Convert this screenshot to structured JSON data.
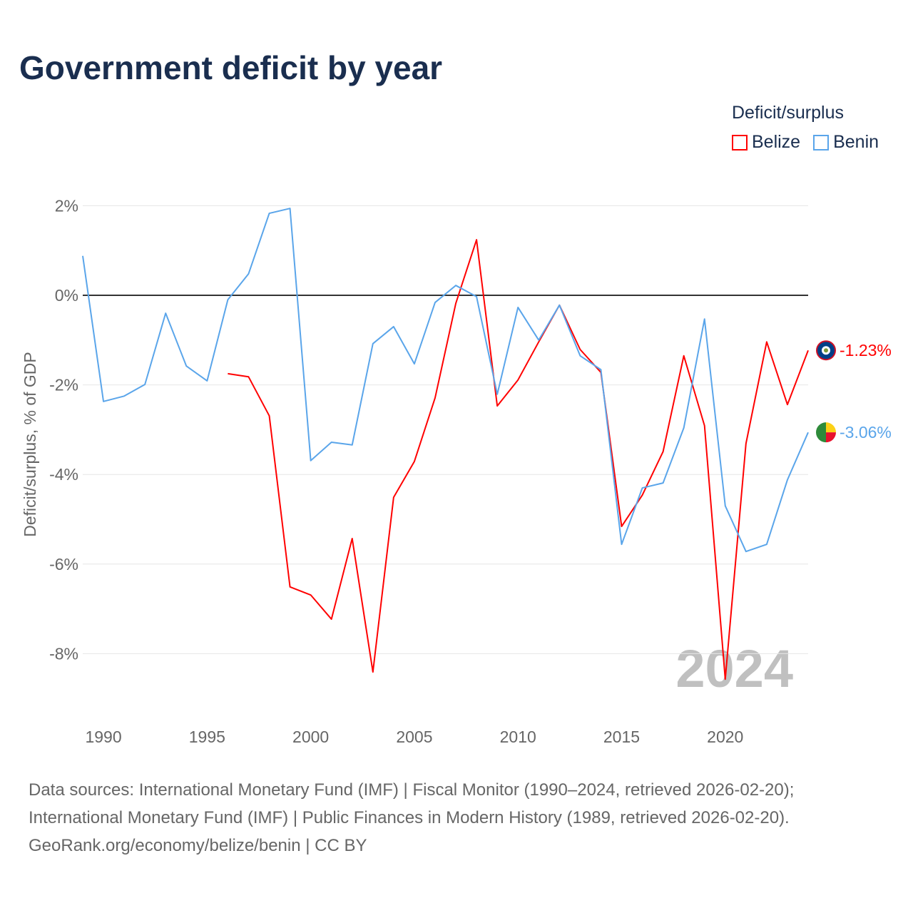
{
  "title": "Government deficit by year",
  "legend": {
    "title": "Deficit/surplus",
    "items": [
      {
        "label": "Belize",
        "color": "#ff0000"
      },
      {
        "label": "Benin",
        "color": "#5aa5ea"
      }
    ]
  },
  "source": {
    "line1": "Data sources: International Monetary Fund (IMF) | Fiscal Monitor (1990–2024, retrieved 2026-02-20);",
    "line2": "International Monetary Fund (IMF) | Public Finances in Modern History (1989, retrieved 2026-02-20).",
    "line3": "GeoRank.org/economy/belize/benin | CC BY"
  },
  "chart_data": {
    "type": "line",
    "title": "Government deficit by year",
    "ylabel": "Deficit/surplus, % of GDP",
    "xlabel": "",
    "year_watermark": "2024",
    "xlim": [
      1989,
      2024
    ],
    "ylim": [
      -9.2,
      2.4
    ],
    "xticks": [
      1990,
      1995,
      2000,
      2005,
      2010,
      2015,
      2020
    ],
    "yticks": [
      2,
      0,
      -2,
      -4,
      -6,
      -8
    ],
    "ytick_labels": [
      "2%",
      "0%",
      "-2%",
      "-4%",
      "-6%",
      "-8%"
    ],
    "series": [
      {
        "name": "Belize",
        "color": "#ff0000",
        "end_label": "-1.23%",
        "x": [
          1996,
          1997,
          1998,
          1999,
          2000,
          2001,
          2002,
          2003,
          2004,
          2005,
          2006,
          2007,
          2008,
          2009,
          2010,
          2011,
          2012,
          2013,
          2014,
          2015,
          2016,
          2017,
          2018,
          2019,
          2020,
          2021,
          2022,
          2023,
          2024
        ],
        "values": [
          -1.75,
          -1.82,
          -2.69,
          -6.51,
          -6.69,
          -7.23,
          -5.43,
          -8.41,
          -4.51,
          -3.71,
          -2.29,
          -0.18,
          1.24,
          -2.47,
          -1.89,
          -1.04,
          -0.22,
          -1.21,
          -1.72,
          -5.16,
          -4.46,
          -3.49,
          -1.35,
          -2.91,
          -8.57,
          -3.31,
          -1.04,
          -2.44,
          -1.23
        ]
      },
      {
        "name": "Benin",
        "color": "#5aa5ea",
        "end_label": "-3.06%",
        "x": [
          1989,
          1990,
          1991,
          1992,
          1993,
          1994,
          1995,
          1996,
          1997,
          1998,
          1999,
          2000,
          2001,
          2002,
          2003,
          2004,
          2005,
          2006,
          2007,
          2008,
          2009,
          2010,
          2011,
          2012,
          2013,
          2014,
          2015,
          2016,
          2017,
          2018,
          2019,
          2020,
          2021,
          2022,
          2023,
          2024
        ],
        "values": [
          0.88,
          -2.37,
          -2.25,
          -1.99,
          -0.4,
          -1.58,
          -1.91,
          -0.1,
          0.48,
          1.83,
          1.94,
          -3.69,
          -3.28,
          -3.34,
          -1.08,
          -0.7,
          -1.53,
          -0.16,
          0.22,
          -0.03,
          -2.21,
          -0.27,
          -1.0,
          -0.22,
          -1.35,
          -1.66,
          -5.56,
          -4.3,
          -4.19,
          -2.96,
          -0.53,
          -4.7,
          -5.72,
          -5.56,
          -4.12,
          -3.06
        ]
      }
    ]
  }
}
